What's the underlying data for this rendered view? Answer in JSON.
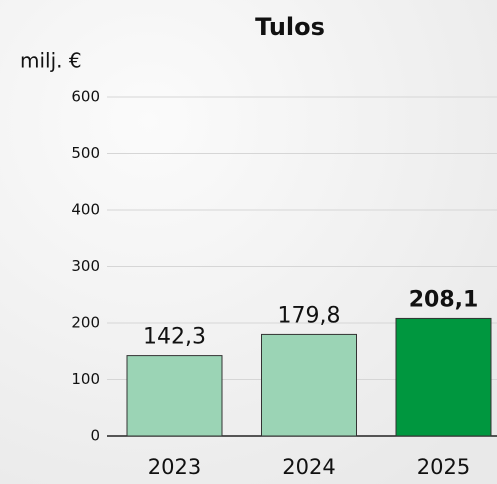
{
  "chart_data": {
    "type": "bar",
    "title": "Tulos",
    "y_label": "milj. €",
    "categories": [
      "2023",
      "2024",
      "2025"
    ],
    "values": [
      142.3,
      179.8,
      208.1
    ],
    "value_labels": [
      "142,3",
      "179,8",
      "208,1"
    ],
    "colors": [
      "#9bd4b5",
      "#9bd4b5",
      "#00973f"
    ],
    "ylim": [
      0,
      600
    ],
    "yticks": [
      0,
      100,
      200,
      300,
      400,
      500,
      600
    ],
    "grid": true
  }
}
